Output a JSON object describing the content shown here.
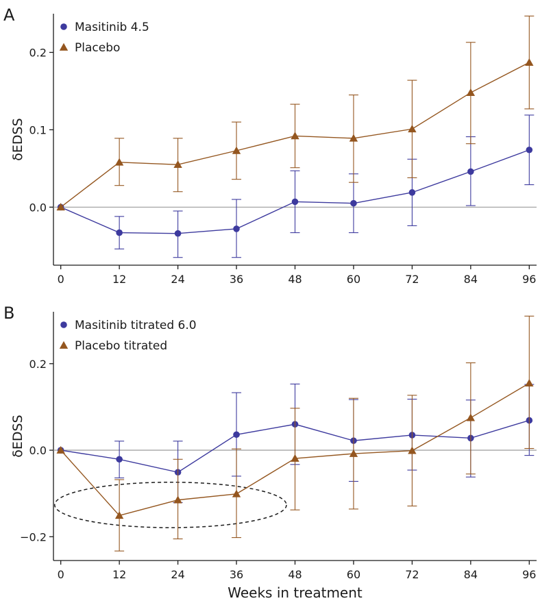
{
  "colors": {
    "masitinib": "#3d3a9e",
    "placebo": "#94561f",
    "axis": "#1a1a1a",
    "zero_line": "#9a9a9a",
    "ellipse": "#1a1a1a"
  },
  "figure": {
    "xlabel": "Weeks in treatment"
  },
  "chart_data": [
    {
      "panel_label": "A",
      "type": "line",
      "xlabel": "",
      "ylabel": "δEDSS",
      "x": [
        0,
        12,
        24,
        36,
        48,
        60,
        72,
        84,
        96
      ],
      "xticks": [
        "0",
        "12",
        "24",
        "36",
        "48",
        "60",
        "72",
        "84",
        "96"
      ],
      "xlim": [
        -1.5,
        97.5
      ],
      "ylim": [
        -0.075,
        0.25
      ],
      "yticks": [
        0.0,
        0.1,
        0.2
      ],
      "ytick_labels": [
        "0.0",
        "0.1",
        "0.2"
      ],
      "zero_line": true,
      "legend": "top-left",
      "series": [
        {
          "name": "Masitinib 4.5",
          "marker": "circle",
          "color_key": "masitinib",
          "values": [
            0.0,
            -0.033,
            -0.034,
            -0.028,
            0.007,
            0.005,
            0.019,
            0.046,
            0.074
          ],
          "lower": [
            0.0,
            -0.054,
            -0.065,
            -0.065,
            -0.033,
            -0.033,
            -0.024,
            0.002,
            0.029
          ],
          "upper": [
            0.0,
            -0.012,
            -0.005,
            0.01,
            0.047,
            0.043,
            0.062,
            0.091,
            0.119
          ]
        },
        {
          "name": "Placebo",
          "marker": "triangle",
          "color_key": "placebo",
          "values": [
            0.0,
            0.058,
            0.055,
            0.073,
            0.092,
            0.089,
            0.101,
            0.148,
            0.187
          ],
          "lower": [
            0.0,
            0.028,
            0.02,
            0.036,
            0.051,
            0.032,
            0.038,
            0.082,
            0.127
          ],
          "upper": [
            0.0,
            0.089,
            0.089,
            0.11,
            0.133,
            0.145,
            0.164,
            0.213,
            0.247
          ]
        }
      ]
    },
    {
      "panel_label": "B",
      "type": "line",
      "xlabel": "Weeks in treatment",
      "ylabel": "δEDSS",
      "x": [
        0,
        12,
        24,
        36,
        48,
        60,
        72,
        84,
        96
      ],
      "xticks": [
        "0",
        "12",
        "24",
        "36",
        "48",
        "60",
        "72",
        "84",
        "96"
      ],
      "xlim": [
        -1.5,
        97.5
      ],
      "ylim": [
        -0.255,
        0.32
      ],
      "yticks": [
        -0.2,
        0.0,
        0.2
      ],
      "ytick_labels": [
        "−0.2",
        "0.0",
        "0.2"
      ],
      "zero_line": true,
      "legend": "top-left",
      "annotation": {
        "type": "dashed-ellipse",
        "center_x": 22.5,
        "center_y": -0.1265,
        "radius_x": 23.75,
        "radius_y": 0.0525
      },
      "series": [
        {
          "name": "Masitinib titrated 6.0",
          "marker": "circle",
          "color_key": "masitinib",
          "values": [
            0.0,
            -0.021,
            -0.051,
            0.036,
            0.06,
            0.022,
            0.035,
            0.028,
            0.069
          ],
          "lower": [
            0.0,
            -0.064,
            -0.121,
            -0.06,
            -0.033,
            -0.072,
            -0.046,
            -0.062,
            -0.012
          ],
          "upper": [
            0.0,
            0.021,
            0.021,
            0.133,
            0.153,
            0.117,
            0.118,
            0.116,
            0.152
          ]
        },
        {
          "name": "Placebo titrated",
          "marker": "triangle",
          "color_key": "placebo",
          "values": [
            0.0,
            -0.151,
            -0.115,
            -0.101,
            -0.019,
            -0.008,
            -0.001,
            0.075,
            0.155
          ],
          "lower": [
            0.0,
            -0.233,
            -0.205,
            -0.202,
            -0.138,
            -0.136,
            -0.129,
            -0.055,
            0.004
          ],
          "upper": [
            0.0,
            -0.068,
            -0.021,
            0.003,
            0.097,
            0.12,
            0.127,
            0.202,
            0.31
          ]
        }
      ]
    }
  ]
}
